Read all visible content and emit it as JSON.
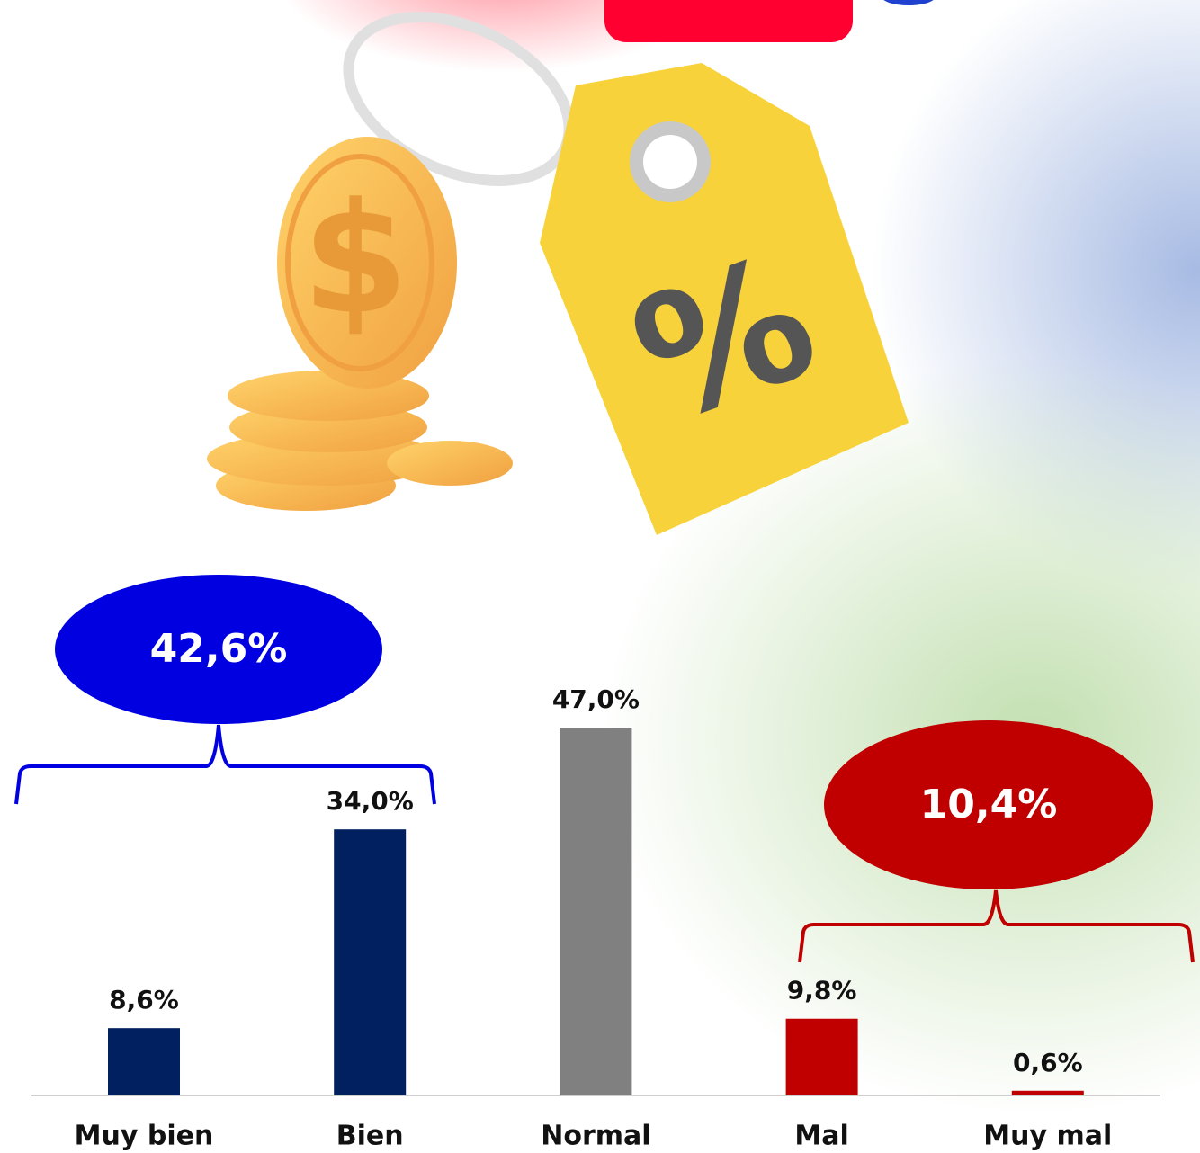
{
  "chart_data": {
    "type": "bar",
    "categories": [
      "Muy bien",
      "Bien",
      "Normal",
      "Mal",
      "Muy mal"
    ],
    "values": [
      8.6,
      34.0,
      47.0,
      9.8,
      0.6
    ],
    "value_labels": [
      "8,6%",
      "34,0%",
      "47,0%",
      "9,8%",
      "0,6%"
    ],
    "colors": [
      "#002060",
      "#002060",
      "#808080",
      "#c00000",
      "#c00000"
    ],
    "annotations": [
      {
        "text": "42,6%",
        "color": "#0000e0"
      },
      {
        "text": "10,4%",
        "color": "#c00000"
      }
    ]
  }
}
